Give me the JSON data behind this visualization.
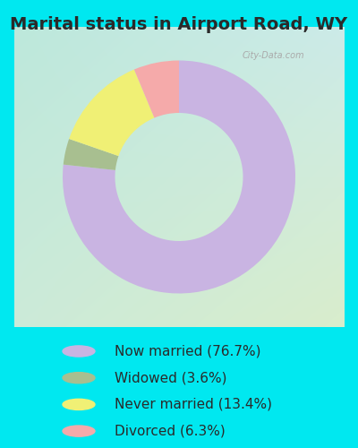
{
  "title": "Marital status in Airport Road, WY",
  "slices": [
    76.7,
    3.6,
    13.4,
    6.3
  ],
  "labels": [
    "Now married (76.7%)",
    "Widowed (3.6%)",
    "Never married (13.4%)",
    "Divorced (6.3%)"
  ],
  "colors": [
    "#c9b4e2",
    "#a8bf90",
    "#f0f075",
    "#f5aaaa"
  ],
  "outer_bg": "#00e8f0",
  "chart_bg_topleft": "#c0ebe0",
  "chart_bg_bottomright": "#d8edcc",
  "donut_width": 0.45,
  "startangle": 90,
  "title_fontsize": 14,
  "legend_fontsize": 11,
  "watermark_text": "City-Data.com"
}
